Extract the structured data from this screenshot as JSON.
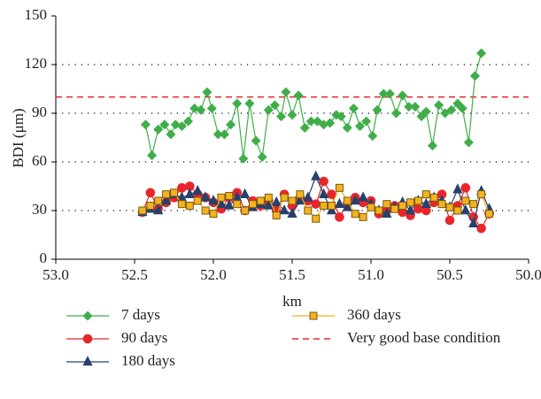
{
  "chart_data": {
    "type": "line",
    "xlabel": "km",
    "ylabel": "BDI (μm)",
    "xlim": [
      53,
      50
    ],
    "xticks": [
      {
        "value": 53,
        "label": "53.0"
      },
      52.5,
      {
        "value": 52,
        "label": "52.0"
      },
      51.5,
      {
        "value": 51,
        "label": "51.0"
      },
      50.5,
      {
        "value": 50,
        "label": "50.0"
      }
    ],
    "ylim": [
      0,
      150
    ],
    "yticks": [
      0,
      30,
      60,
      90,
      120,
      150
    ],
    "grid": true,
    "legend": "below",
    "reference_line": {
      "name": "Very good base condition",
      "value": 100,
      "color": "#e8262a"
    },
    "series": [
      {
        "name": "7 days",
        "color": "#3fae49",
        "marker": "diamond",
        "x": [
          52.43,
          52.39,
          52.35,
          52.31,
          52.27,
          52.24,
          52.2,
          52.16,
          52.12,
          52.08,
          52.04,
          52.01,
          51.97,
          51.93,
          51.89,
          51.85,
          51.81,
          51.77,
          51.73,
          51.69,
          51.65,
          51.61,
          51.57,
          51.54,
          51.5,
          51.46,
          51.42,
          51.38,
          51.34,
          51.3,
          51.26,
          51.22,
          51.19,
          51.15,
          51.11,
          51.07,
          51.03,
          50.99,
          50.96,
          50.92,
          50.88,
          50.84,
          50.8,
          50.76,
          50.72,
          50.68,
          50.65,
          50.61,
          50.57,
          50.53,
          50.49,
          50.45,
          50.42,
          50.38,
          50.34,
          50.3
        ],
        "values": [
          83,
          64,
          80,
          83,
          77,
          83,
          82,
          85,
          93,
          92,
          103,
          93,
          77,
          77,
          83,
          96,
          62,
          96,
          73,
          63,
          92,
          95,
          88,
          103,
          89,
          101,
          81,
          85,
          85,
          83,
          84,
          89,
          88,
          81,
          93,
          82,
          85,
          76,
          92,
          102,
          102,
          90,
          101,
          94,
          94,
          88,
          91,
          70,
          95,
          90,
          92,
          96,
          93,
          72,
          113,
          127
        ]
      },
      {
        "name": "90 days",
        "color": "#e8262a",
        "marker": "circle",
        "x": [
          52.45,
          52.4,
          52.35,
          52.3,
          52.25,
          52.2,
          52.15,
          52.1,
          52.05,
          52,
          51.95,
          51.9,
          51.85,
          51.8,
          51.75,
          51.7,
          51.65,
          51.6,
          51.55,
          51.5,
          51.45,
          51.4,
          51.35,
          51.3,
          51.25,
          51.2,
          51.15,
          51.1,
          51.05,
          51,
          50.95,
          50.9,
          50.85,
          50.8,
          50.75,
          50.7,
          50.65,
          50.6,
          50.55,
          50.5,
          50.45,
          50.4,
          50.35,
          50.3,
          50.25
        ],
        "values": [
          29,
          41,
          31,
          35,
          38,
          44,
          45,
          40,
          38,
          35,
          31,
          38,
          41,
          30,
          36,
          33,
          36,
          30,
          40,
          33,
          38,
          36,
          34,
          48,
          40,
          26,
          34,
          38,
          35,
          36,
          28,
          30,
          33,
          29,
          27,
          31,
          30,
          35,
          40,
          24,
          33,
          44,
          26,
          19,
          28
        ]
      },
      {
        "name": "180 days",
        "color": "#27406b",
        "marker": "triangle",
        "x": [
          52.45,
          52.4,
          52.35,
          52.3,
          52.25,
          52.2,
          52.15,
          52.1,
          52.05,
          52,
          51.95,
          51.9,
          51.85,
          51.8,
          51.75,
          51.7,
          51.65,
          51.6,
          51.55,
          51.5,
          51.45,
          51.4,
          51.35,
          51.3,
          51.25,
          51.2,
          51.15,
          51.1,
          51.05,
          51,
          50.95,
          50.9,
          50.85,
          50.8,
          50.75,
          50.7,
          50.65,
          50.6,
          50.55,
          50.5,
          50.45,
          50.4,
          50.35,
          50.3,
          50.25
        ],
        "values": [
          29,
          31,
          30,
          36,
          40,
          38,
          40,
          42,
          38,
          36,
          34,
          33,
          38,
          40,
          32,
          34,
          33,
          35,
          30,
          28,
          36,
          38,
          51,
          40,
          30,
          34,
          32,
          36,
          38,
          34,
          30,
          28,
          32,
          35,
          30,
          36,
          34,
          38,
          36,
          32,
          43,
          30,
          22,
          42,
          31
        ]
      },
      {
        "name": "360 days",
        "color": "#f3b21f",
        "marker": "square",
        "x": [
          52.45,
          52.4,
          52.35,
          52.3,
          52.25,
          52.2,
          52.15,
          52.1,
          52.05,
          52,
          51.95,
          51.9,
          51.85,
          51.8,
          51.75,
          51.7,
          51.65,
          51.6,
          51.55,
          51.5,
          51.45,
          51.4,
          51.35,
          51.3,
          51.25,
          51.2,
          51.15,
          51.1,
          51.05,
          51,
          50.95,
          50.9,
          50.85,
          50.8,
          50.75,
          50.7,
          50.65,
          50.6,
          50.55,
          50.5,
          50.45,
          50.4,
          50.35,
          50.3,
          50.25
        ],
        "values": [
          30,
          33,
          36,
          40,
          41,
          34,
          33,
          36,
          30,
          28,
          38,
          39,
          34,
          30,
          34,
          36,
          38,
          27,
          38,
          36,
          40,
          30,
          25,
          33,
          33,
          44,
          36,
          28,
          26,
          32,
          30,
          34,
          31,
          33,
          35,
          36,
          40,
          38,
          34,
          32,
          30,
          36,
          34,
          40,
          28
        ]
      }
    ]
  }
}
